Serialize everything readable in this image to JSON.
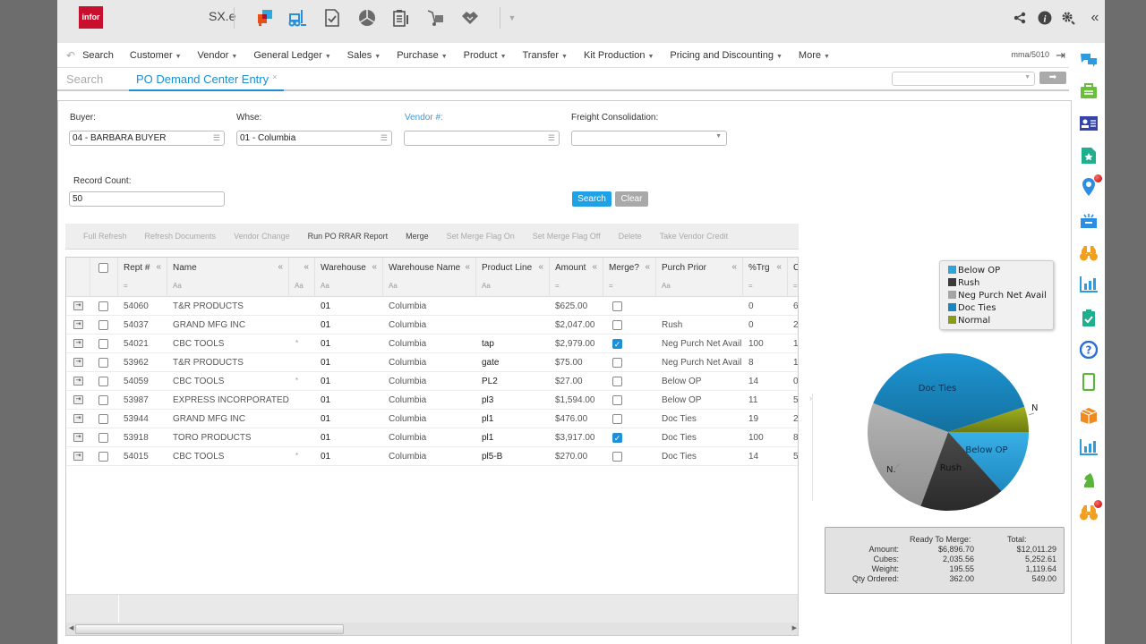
{
  "topbar": {
    "logo_text": "infor",
    "app_name": "SX.e",
    "icons": [
      "chat-bubbles-icon",
      "forklift-icon",
      "checklist-document-icon",
      "pie-segments-icon",
      "clipboard-list-icon",
      "hand-truck-icon",
      "handshake-icon",
      "dropdown-caret-icon"
    ],
    "right_icons": [
      "share-icon",
      "info-icon",
      "settings-icon",
      "collapse-double-chevron-icon"
    ]
  },
  "menubar": {
    "search_label": "Search",
    "items": [
      {
        "label": "Customer"
      },
      {
        "label": "Vendor"
      },
      {
        "label": "General Ledger"
      },
      {
        "label": "Sales"
      },
      {
        "label": "Purchase"
      },
      {
        "label": "Product"
      },
      {
        "label": "Transfer"
      },
      {
        "label": "Kit Production"
      },
      {
        "label": "Pricing and Discounting"
      },
      {
        "label": "More"
      }
    ],
    "user": "mma/5010"
  },
  "tabs": {
    "search_tab": "Search",
    "active_tab": "PO Demand Center Entry",
    "close_glyph": "×",
    "quick_select_value": "",
    "go_glyph": "➡"
  },
  "form": {
    "buyer": {
      "label": "Buyer:",
      "value": "04 - BARBARA BUYER"
    },
    "whse": {
      "label": "Whse:",
      "value": "01 - Columbia"
    },
    "vendor": {
      "label": "Vendor #:",
      "value": ""
    },
    "freight": {
      "label": "Freight Consolidation:",
      "value": ""
    },
    "record_count": {
      "label": "Record Count:",
      "value": "50"
    },
    "search_button": "Search",
    "clear_button": "Clear"
  },
  "actions": [
    {
      "label": "Full Refresh",
      "enabled": false
    },
    {
      "label": "Refresh Documents",
      "enabled": false
    },
    {
      "label": "Vendor Change",
      "enabled": false
    },
    {
      "label": "Run PO RRAR Report",
      "enabled": true
    },
    {
      "label": "Merge",
      "enabled": true
    },
    {
      "label": "Set Merge Flag On",
      "enabled": false
    },
    {
      "label": "Set Merge Flag Off",
      "enabled": false
    },
    {
      "label": "Delete",
      "enabled": false
    },
    {
      "label": "Take Vendor Credit",
      "enabled": false
    }
  ],
  "grid": {
    "columns": [
      {
        "label": "Rept #",
        "filter": "="
      },
      {
        "label": "Name",
        "filter": "Aa"
      },
      {
        "label": "",
        "filter": "Aa"
      },
      {
        "label": "Warehouse",
        "filter": "Aa"
      },
      {
        "label": "Warehouse Name",
        "filter": "Aa"
      },
      {
        "label": "Product Line",
        "filter": "Aa"
      },
      {
        "label": "Amount",
        "filter": "="
      },
      {
        "label": "Merge?",
        "filter": "="
      },
      {
        "label": "Purch Prior",
        "filter": "Aa"
      },
      {
        "label": "%Trg",
        "filter": "="
      },
      {
        "label": "C",
        "filter": "="
      }
    ],
    "rows": [
      {
        "rept": "54060",
        "name": "T&R PRODUCTS",
        "flag": "",
        "whse": "01",
        "whse_name": "Columbia",
        "prod_line": "",
        "amount": "$625.00",
        "merge": false,
        "priority": "",
        "trg": "0",
        "c": "6"
      },
      {
        "rept": "54037",
        "name": "GRAND MFG INC",
        "flag": "",
        "whse": "01",
        "whse_name": "Columbia",
        "prod_line": "",
        "amount": "$2,047.00",
        "merge": false,
        "priority": "Rush",
        "trg": "0",
        "c": "2"
      },
      {
        "rept": "54021",
        "name": "CBC TOOLS",
        "flag": "*",
        "whse": "01",
        "whse_name": "Columbia",
        "prod_line": "tap",
        "amount": "$2,979.00",
        "merge": true,
        "priority": "Neg Purch Net Avail",
        "trg": "100",
        "c": "1"
      },
      {
        "rept": "53962",
        "name": "T&R PRODUCTS",
        "flag": "",
        "whse": "01",
        "whse_name": "Columbia",
        "prod_line": "gate",
        "amount": "$75.00",
        "merge": false,
        "priority": "Neg Purch Net Avail",
        "trg": "8",
        "c": "1"
      },
      {
        "rept": "54059",
        "name": "CBC TOOLS",
        "flag": "*",
        "whse": "01",
        "whse_name": "Columbia",
        "prod_line": "PL2",
        "amount": "$27.00",
        "merge": false,
        "priority": "Below OP",
        "trg": "14",
        "c": "0"
      },
      {
        "rept": "53987",
        "name": "EXPRESS INCORPORATED",
        "flag": "",
        "whse": "01",
        "whse_name": "Columbia",
        "prod_line": "pl3",
        "amount": "$1,594.00",
        "merge": false,
        "priority": "Below OP",
        "trg": "11",
        "c": "5"
      },
      {
        "rept": "53944",
        "name": "GRAND MFG INC",
        "flag": "",
        "whse": "01",
        "whse_name": "Columbia",
        "prod_line": "pl1",
        "amount": "$476.00",
        "merge": false,
        "priority": "Doc Ties",
        "trg": "19",
        "c": "2"
      },
      {
        "rept": "53918",
        "name": "TORO PRODUCTS",
        "flag": "",
        "whse": "01",
        "whse_name": "Columbia",
        "prod_line": "pl1",
        "amount": "$3,917.00",
        "merge": true,
        "priority": "Doc Ties",
        "trg": "100",
        "c": "8"
      },
      {
        "rept": "54015",
        "name": "CBC TOOLS",
        "flag": "*",
        "whse": "01",
        "whse_name": "Columbia",
        "prod_line": "pl5-B",
        "amount": "$270.00",
        "merge": false,
        "priority": "Doc Ties",
        "trg": "14",
        "c": "5"
      }
    ]
  },
  "chart_data": {
    "type": "pie",
    "title": "",
    "legend_position": "top-right",
    "categories": [
      "Below OP",
      "Rush",
      "Neg Purch Net Avail",
      "Doc Ties",
      "Normal"
    ],
    "values": [
      1621,
      2047,
      3054,
      4663,
      625
    ],
    "colors": [
      "#2ea3dc",
      "#3a3a3a",
      "#a5a5a5",
      "#1a87c2",
      "#8a9a1a"
    ],
    "slice_labels": [
      "Below OP",
      "Rush",
      "N.",
      "Doc Ties",
      "N"
    ]
  },
  "legend": [
    {
      "label": "Below OP",
      "color": "#2ea3dc"
    },
    {
      "label": "Rush",
      "color": "#3a3a3a"
    },
    {
      "label": "Neg Purch Net Avail",
      "color": "#a5a5a5"
    },
    {
      "label": "Doc Ties",
      "color": "#1a87c2"
    },
    {
      "label": "Normal",
      "color": "#8a9a1a"
    }
  ],
  "summary": {
    "header_ready": "Ready To Merge:",
    "header_total": "Total:",
    "rows": [
      {
        "label": "Amount:",
        "ready": "$6,896.70",
        "total": "$12,011.29"
      },
      {
        "label": "Cubes:",
        "ready": "2,035.56",
        "total": "5,252.61"
      },
      {
        "label": "Weight:",
        "ready": "195.55",
        "total": "1,119.64"
      },
      {
        "label": "Qty Ordered:",
        "ready": "362.00",
        "total": "549.00"
      }
    ]
  },
  "rail": [
    {
      "icon": "chat-icon",
      "color": "#2d9be0"
    },
    {
      "icon": "briefcase-icon",
      "color": "#6abf3a"
    },
    {
      "icon": "contact-card-icon",
      "color": "#3343a8"
    },
    {
      "icon": "starred-document-icon",
      "color": "#1fae8e"
    },
    {
      "icon": "location-pin-icon",
      "color": "#2d8de0",
      "badge": true
    },
    {
      "icon": "inbox-tray-icon",
      "color": "#2d8de0"
    },
    {
      "icon": "binoculars-icon",
      "color": "#f0a020"
    },
    {
      "icon": "bar-chart-icon",
      "color": "#2d9be0"
    },
    {
      "icon": "clipboard-check-icon",
      "color": "#1fae8e"
    },
    {
      "icon": "help-icon",
      "color": "#2a6fd6"
    },
    {
      "icon": "mobile-icon",
      "color": "#5bb53a"
    },
    {
      "icon": "package-icon",
      "color": "#f08a20"
    },
    {
      "icon": "bar-chart-icon",
      "color": "#2d9be0"
    },
    {
      "icon": "chess-knight-icon",
      "color": "#5bb53a"
    },
    {
      "icon": "binoculars-icon",
      "color": "#f0a020",
      "badge": true
    }
  ]
}
